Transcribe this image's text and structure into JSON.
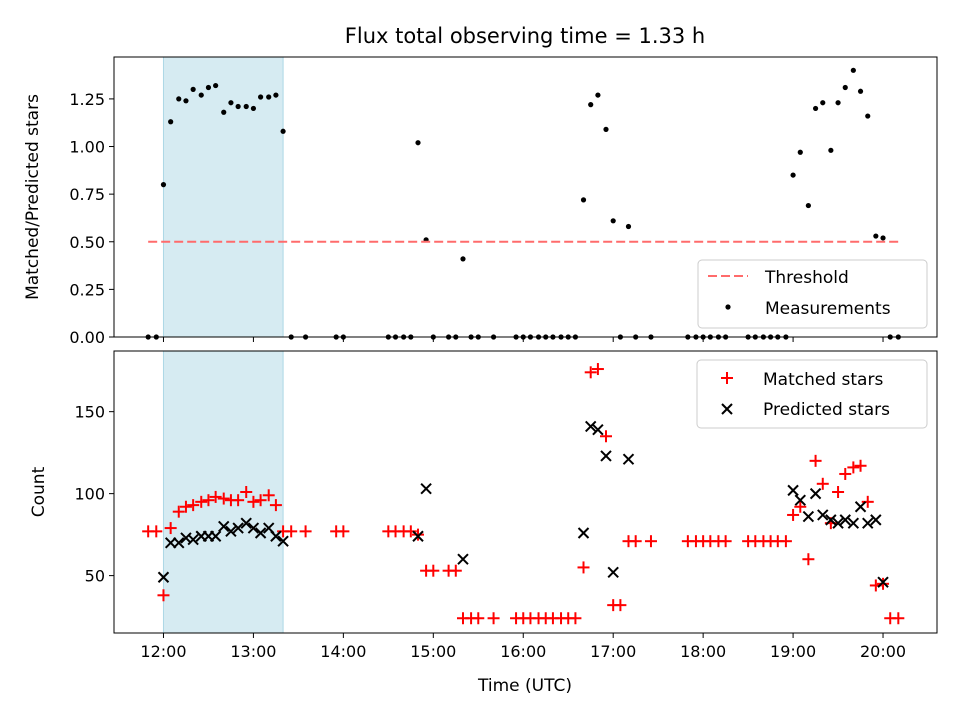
{
  "chart_data": {
    "type": "scatter",
    "title": "Flux total observing time = 1.33 h",
    "colors": {
      "shade": "#add8e6",
      "threshold": "#ff6b6b",
      "measurement": "#000000",
      "matched": "#ff0000",
      "predicted": "#000000",
      "axis": "#000000"
    },
    "highlight_span_hours": [
      12.0,
      13.33
    ],
    "x_ticks": [
      {
        "value": 12,
        "label": "12:00"
      },
      {
        "value": 13,
        "label": "13:00"
      },
      {
        "value": 14,
        "label": "14:00"
      },
      {
        "value": 15,
        "label": "15:00"
      },
      {
        "value": 16,
        "label": "16:00"
      },
      {
        "value": 17,
        "label": "17:00"
      },
      {
        "value": 18,
        "label": "18:00"
      },
      {
        "value": 19,
        "label": "19:00"
      },
      {
        "value": 20,
        "label": "20:00"
      }
    ],
    "xlim": [
      11.45,
      20.6
    ],
    "xlabel": "Time (UTC)",
    "top": {
      "ylabel": "Matched/Predicted stars",
      "ylim": [
        0,
        1.47
      ],
      "y_ticks": [
        {
          "value": 0.0,
          "label": "0.00"
        },
        {
          "value": 0.25,
          "label": "0.25"
        },
        {
          "value": 0.5,
          "label": "0.50"
        },
        {
          "value": 0.75,
          "label": "0.75"
        },
        {
          "value": 1.0,
          "label": "1.00"
        },
        {
          "value": 1.25,
          "label": "1.25"
        }
      ],
      "threshold": {
        "value": 0.5,
        "x_range": [
          11.83,
          20.17
        ],
        "label": "Threshold"
      },
      "measurements_label": "Measurements",
      "measurements": [
        [
          11.83,
          0
        ],
        [
          11.92,
          0
        ],
        [
          12.0,
          0.8
        ],
        [
          12.08,
          1.13
        ],
        [
          12.17,
          1.25
        ],
        [
          12.25,
          1.24
        ],
        [
          12.33,
          1.3
        ],
        [
          12.42,
          1.27
        ],
        [
          12.5,
          1.31
        ],
        [
          12.58,
          1.32
        ],
        [
          12.67,
          1.18
        ],
        [
          12.75,
          1.23
        ],
        [
          12.83,
          1.21
        ],
        [
          12.92,
          1.21
        ],
        [
          13.0,
          1.2
        ],
        [
          13.08,
          1.26
        ],
        [
          13.17,
          1.26
        ],
        [
          13.25,
          1.27
        ],
        [
          13.33,
          1.08
        ],
        [
          13.42,
          0
        ],
        [
          13.58,
          0
        ],
        [
          13.92,
          0
        ],
        [
          14.0,
          0
        ],
        [
          14.5,
          0
        ],
        [
          14.58,
          0
        ],
        [
          14.67,
          0
        ],
        [
          14.75,
          0
        ],
        [
          14.83,
          1.02
        ],
        [
          14.92,
          0.51
        ],
        [
          15.0,
          0
        ],
        [
          15.17,
          0
        ],
        [
          15.25,
          0
        ],
        [
          15.33,
          0.41
        ],
        [
          15.42,
          0
        ],
        [
          15.5,
          0
        ],
        [
          15.67,
          0
        ],
        [
          15.92,
          0
        ],
        [
          16.0,
          0
        ],
        [
          16.08,
          0
        ],
        [
          16.17,
          0
        ],
        [
          16.25,
          0
        ],
        [
          16.33,
          0
        ],
        [
          16.42,
          0
        ],
        [
          16.5,
          0
        ],
        [
          16.58,
          0
        ],
        [
          16.67,
          0.72
        ],
        [
          16.75,
          1.22
        ],
        [
          16.83,
          1.27
        ],
        [
          16.92,
          1.09
        ],
        [
          17.0,
          0.61
        ],
        [
          17.08,
          0
        ],
        [
          17.17,
          0.58
        ],
        [
          17.25,
          0
        ],
        [
          17.42,
          0
        ],
        [
          17.83,
          0
        ],
        [
          17.92,
          0
        ],
        [
          18.0,
          0
        ],
        [
          18.08,
          0
        ],
        [
          18.17,
          0
        ],
        [
          18.25,
          0
        ],
        [
          18.5,
          0
        ],
        [
          18.58,
          0
        ],
        [
          18.67,
          0
        ],
        [
          18.75,
          0
        ],
        [
          18.83,
          0
        ],
        [
          18.92,
          0
        ],
        [
          19.0,
          0.85
        ],
        [
          19.08,
          0.97
        ],
        [
          19.17,
          0.69
        ],
        [
          19.25,
          1.2
        ],
        [
          19.33,
          1.23
        ],
        [
          19.42,
          0.98
        ],
        [
          19.5,
          1.23
        ],
        [
          19.58,
          1.31
        ],
        [
          19.67,
          1.4
        ],
        [
          19.75,
          1.29
        ],
        [
          19.83,
          1.16
        ],
        [
          19.92,
          0.53
        ],
        [
          20.0,
          0.52
        ],
        [
          20.08,
          0
        ],
        [
          20.17,
          0
        ]
      ]
    },
    "bottom": {
      "ylabel": "Count",
      "ylim": [
        15,
        187
      ],
      "y_ticks": [
        {
          "value": 50,
          "label": "50"
        },
        {
          "value": 100,
          "label": "100"
        },
        {
          "value": 150,
          "label": "150"
        }
      ],
      "matched_label": "Matched stars",
      "predicted_label": "Predicted stars",
      "matched": [
        [
          11.83,
          77
        ],
        [
          11.92,
          77
        ],
        [
          12.0,
          38
        ],
        [
          12.08,
          79
        ],
        [
          12.17,
          89
        ],
        [
          12.25,
          92
        ],
        [
          12.33,
          93
        ],
        [
          12.42,
          95
        ],
        [
          12.5,
          96
        ],
        [
          12.58,
          98
        ],
        [
          12.67,
          97
        ],
        [
          12.75,
          96
        ],
        [
          12.83,
          96
        ],
        [
          12.92,
          101
        ],
        [
          13.0,
          95
        ],
        [
          13.08,
          96
        ],
        [
          13.17,
          99
        ],
        [
          13.25,
          93
        ],
        [
          13.33,
          77
        ],
        [
          13.42,
          77
        ],
        [
          13.58,
          77
        ],
        [
          13.92,
          77
        ],
        [
          14.0,
          77
        ],
        [
          14.5,
          77
        ],
        [
          14.58,
          77
        ],
        [
          14.67,
          77
        ],
        [
          14.75,
          77
        ],
        [
          14.83,
          75
        ],
        [
          14.92,
          53
        ],
        [
          15.0,
          53
        ],
        [
          15.17,
          53
        ],
        [
          15.25,
          53
        ],
        [
          15.33,
          24
        ],
        [
          15.42,
          24
        ],
        [
          15.5,
          24
        ],
        [
          15.67,
          24
        ],
        [
          15.92,
          24
        ],
        [
          16.0,
          24
        ],
        [
          16.08,
          24
        ],
        [
          16.17,
          24
        ],
        [
          16.25,
          24
        ],
        [
          16.33,
          24
        ],
        [
          16.42,
          24
        ],
        [
          16.5,
          24
        ],
        [
          16.58,
          24
        ],
        [
          16.67,
          55
        ],
        [
          16.75,
          174
        ],
        [
          16.83,
          176
        ],
        [
          16.92,
          135
        ],
        [
          17.0,
          32
        ],
        [
          17.08,
          32
        ],
        [
          17.17,
          71
        ],
        [
          17.25,
          71
        ],
        [
          17.42,
          71
        ],
        [
          17.83,
          71
        ],
        [
          17.92,
          71
        ],
        [
          18.0,
          71
        ],
        [
          18.08,
          71
        ],
        [
          18.17,
          71
        ],
        [
          18.25,
          71
        ],
        [
          18.5,
          71
        ],
        [
          18.58,
          71
        ],
        [
          18.67,
          71
        ],
        [
          18.75,
          71
        ],
        [
          18.83,
          71
        ],
        [
          18.92,
          71
        ],
        [
          19.0,
          87
        ],
        [
          19.08,
          92
        ],
        [
          19.17,
          60
        ],
        [
          19.25,
          120
        ],
        [
          19.33,
          106
        ],
        [
          19.42,
          82
        ],
        [
          19.5,
          101
        ],
        [
          19.58,
          112
        ],
        [
          19.67,
          116
        ],
        [
          19.75,
          117
        ],
        [
          19.83,
          95
        ],
        [
          19.92,
          44
        ],
        [
          20.0,
          45
        ],
        [
          20.08,
          24
        ],
        [
          20.17,
          24
        ]
      ],
      "predicted": [
        [
          12.0,
          49
        ],
        [
          12.08,
          70
        ],
        [
          12.17,
          70
        ],
        [
          12.25,
          73
        ],
        [
          12.33,
          72
        ],
        [
          12.42,
          74
        ],
        [
          12.5,
          74
        ],
        [
          12.58,
          74
        ],
        [
          12.67,
          80
        ],
        [
          12.75,
          77
        ],
        [
          12.83,
          79
        ],
        [
          12.92,
          82
        ],
        [
          13.0,
          79
        ],
        [
          13.08,
          76
        ],
        [
          13.17,
          79
        ],
        [
          13.25,
          74
        ],
        [
          13.33,
          71
        ],
        [
          14.83,
          74
        ],
        [
          14.92,
          103
        ],
        [
          15.33,
          60
        ],
        [
          16.67,
          76
        ],
        [
          16.75,
          141
        ],
        [
          16.83,
          139
        ],
        [
          16.92,
          123
        ],
        [
          17.0,
          52
        ],
        [
          17.17,
          121
        ],
        [
          19.0,
          102
        ],
        [
          19.08,
          96
        ],
        [
          19.17,
          86
        ],
        [
          19.25,
          100
        ],
        [
          19.33,
          87
        ],
        [
          19.42,
          84
        ],
        [
          19.5,
          82
        ],
        [
          19.58,
          84
        ],
        [
          19.67,
          82
        ],
        [
          19.75,
          92
        ],
        [
          19.83,
          82
        ],
        [
          19.92,
          84
        ],
        [
          20.0,
          46
        ]
      ]
    }
  }
}
